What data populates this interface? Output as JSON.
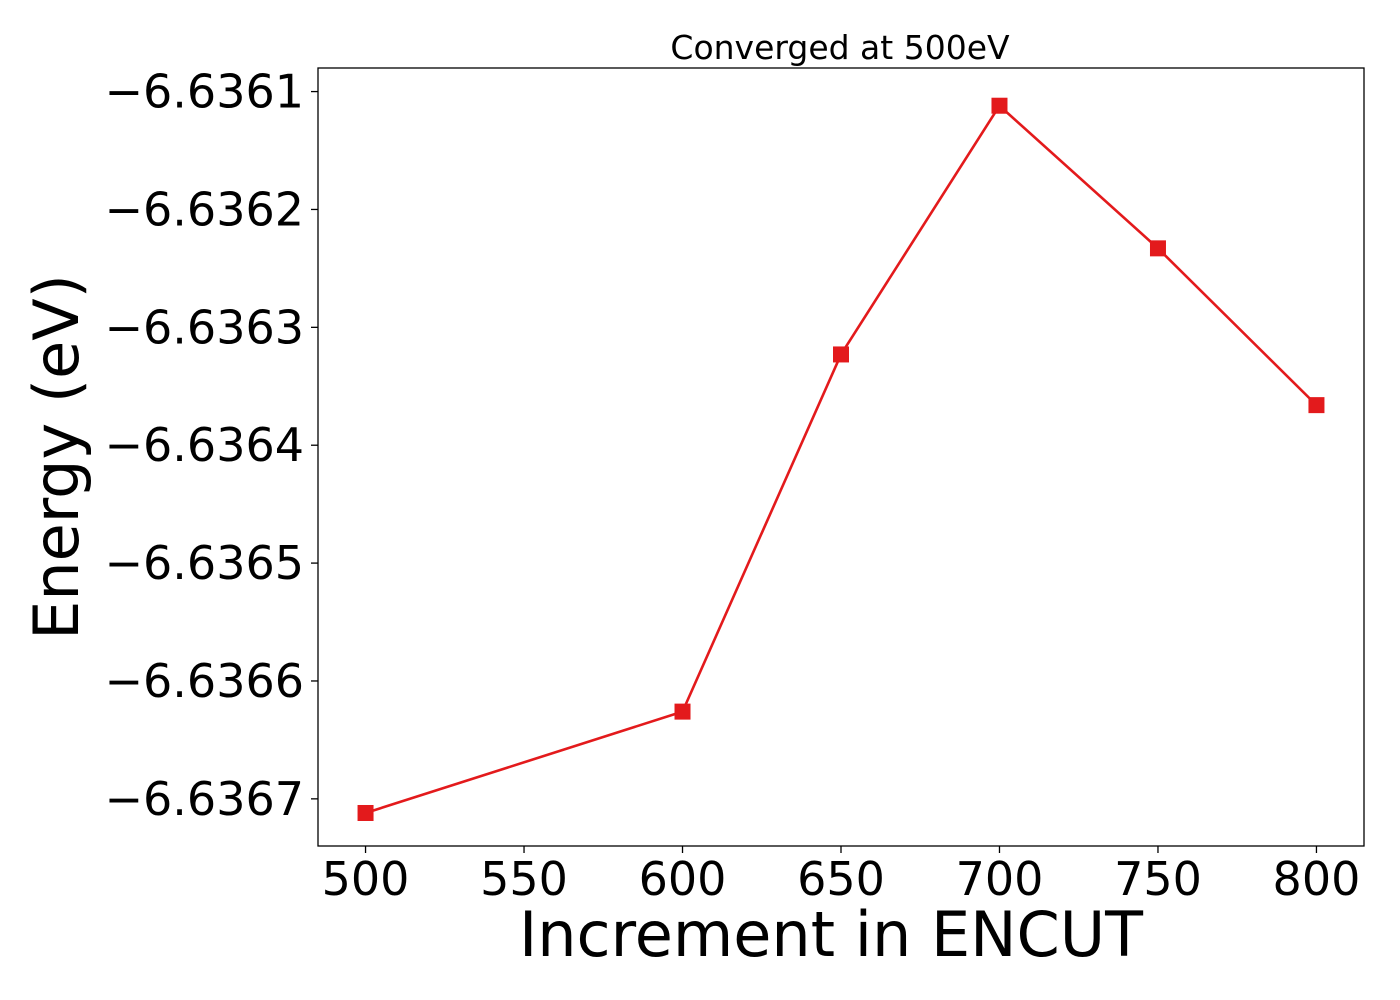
{
  "chart_data": {
    "type": "line",
    "title": "Converged at 500eV",
    "xlabel": "Increment in ENCUT",
    "ylabel": "Energy (eV)",
    "x": [
      500,
      600,
      650,
      700,
      750,
      800
    ],
    "xlim": [
      485,
      815
    ],
    "ylim": [
      -6.63674,
      -6.63608
    ],
    "xticks": [
      500,
      550,
      600,
      650,
      700,
      750,
      800
    ],
    "xtick_labels": [
      "500",
      "550",
      "600",
      "650",
      "700",
      "750",
      "800"
    ],
    "yticks": [
      -6.6361,
      -6.6362,
      -6.6363,
      -6.6364,
      -6.6365,
      -6.6366,
      -6.6367
    ],
    "ytick_labels": [
      "−6.6361",
      "−6.6362",
      "−6.6363",
      "−6.6364",
      "−6.6365",
      "−6.6366",
      "−6.6367"
    ],
    "grid": false,
    "legend": null,
    "series": [
      {
        "values": [
          -6.636712,
          -6.636626,
          -6.636323,
          -6.636112,
          -6.636233,
          -6.636366
        ],
        "color": "#e31a1c",
        "marker": "square"
      }
    ]
  }
}
